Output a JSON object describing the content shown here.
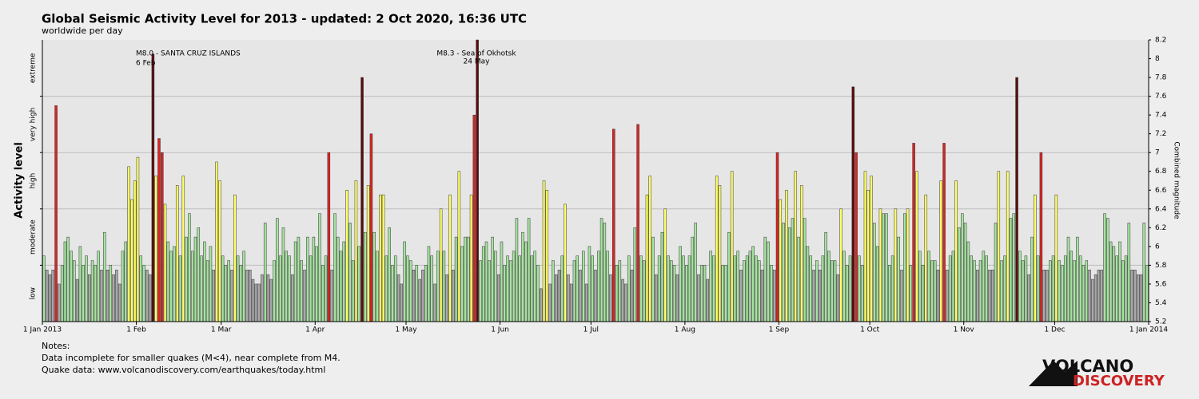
{
  "chart_data": {
    "type": "bar",
    "title": "Global Seismic Activity Level for 2013 - updated:  2 Oct 2020, 16:36 UTC",
    "subtitle": "worldwide per day",
    "y_left_label": "Activity level",
    "y_label": "Combined magnitude",
    "levels": [
      {
        "label": "low",
        "ylim": [
          5.2,
          5.8
        ],
        "color": "#a9a9a9"
      },
      {
        "label": "moderate",
        "ylim": [
          5.8,
          6.4
        ],
        "color": "#a6e3a0"
      },
      {
        "label": "high",
        "ylim": [
          6.4,
          7.0
        ],
        "color": "#ffff66"
      },
      {
        "label": "very high",
        "ylim": [
          7.0,
          7.6
        ],
        "color": "#dd2222"
      },
      {
        "label": "extreme",
        "ylim": [
          7.6,
          8.2
        ],
        "color": "#5a0c0c"
      }
    ],
    "ylim": [
      5.2,
      8.2
    ],
    "yticks": [
      5.2,
      5.4,
      5.6,
      5.8,
      6,
      6.2,
      6.4,
      6.6,
      6.8,
      7,
      7.2,
      7.4,
      7.6,
      7.8,
      8,
      8.2
    ],
    "xlim": [
      0,
      365
    ],
    "xticks": [
      {
        "value": 0,
        "label": "1 Jan 2013"
      },
      {
        "value": 31,
        "label": "1 Feb"
      },
      {
        "value": 59,
        "label": "1 Mar"
      },
      {
        "value": 90,
        "label": "1 Apr"
      },
      {
        "value": 120,
        "label": "1 May"
      },
      {
        "value": 151,
        "label": "1 Jun"
      },
      {
        "value": 181,
        "label": "1 Jul"
      },
      {
        "value": 212,
        "label": "1 Aug"
      },
      {
        "value": 243,
        "label": "1 Sep"
      },
      {
        "value": 273,
        "label": "1 Oct"
      },
      {
        "value": 304,
        "label": "1 Nov"
      },
      {
        "value": 334,
        "label": "1 Dec"
      },
      {
        "value": 365,
        "label": "1 Jan 2014"
      }
    ],
    "values": [
      5.9,
      5.75,
      5.7,
      5.75,
      7.5,
      5.6,
      5.8,
      6.05,
      6.1,
      5.95,
      5.85,
      5.65,
      6.0,
      5.8,
      5.9,
      5.7,
      5.85,
      5.8,
      5.95,
      5.75,
      6.15,
      5.75,
      5.8,
      5.7,
      5.75,
      5.6,
      5.95,
      6.05,
      6.85,
      6.5,
      6.7,
      6.95,
      5.9,
      5.8,
      5.75,
      5.7,
      8.05,
      6.75,
      7.15,
      7.0,
      6.45,
      6.05,
      5.95,
      6.0,
      6.65,
      5.9,
      6.75,
      6.1,
      6.35,
      5.95,
      6.1,
      6.2,
      5.9,
      6.05,
      5.85,
      6.0,
      5.75,
      6.9,
      6.7,
      5.9,
      5.8,
      5.85,
      5.75,
      6.55,
      5.9,
      5.8,
      5.95,
      5.75,
      5.75,
      5.65,
      5.6,
      5.6,
      5.7,
      6.25,
      5.7,
      5.65,
      5.85,
      6.3,
      5.9,
      6.2,
      5.95,
      5.9,
      5.7,
      6.05,
      6.1,
      5.85,
      5.75,
      6.1,
      5.9,
      6.1,
      6.0,
      6.35,
      5.8,
      5.9,
      7.0,
      5.75,
      6.35,
      6.1,
      5.95,
      6.05,
      6.6,
      6.25,
      5.85,
      6.7,
      6.0,
      7.8,
      6.15,
      6.65,
      7.2,
      6.15,
      5.95,
      6.55,
      6.55,
      5.9,
      6.2,
      5.8,
      5.9,
      5.7,
      5.6,
      6.05,
      5.9,
      5.85,
      5.75,
      5.8,
      5.65,
      5.75,
      5.8,
      6.0,
      5.9,
      5.6,
      5.95,
      6.4,
      5.95,
      5.7,
      6.55,
      5.75,
      6.1,
      6.8,
      6.0,
      6.1,
      6.1,
      6.55,
      7.4,
      8.2,
      5.85,
      6.0,
      6.05,
      5.85,
      6.1,
      5.95,
      5.7,
      6.05,
      5.8,
      5.9,
      5.85,
      5.95,
      6.3,
      5.9,
      6.15,
      6.05,
      6.3,
      5.9,
      5.95,
      5.8,
      5.55,
      6.7,
      6.6,
      5.6,
      5.85,
      5.7,
      5.75,
      5.9,
      6.45,
      5.7,
      5.6,
      5.85,
      5.9,
      5.75,
      5.95,
      5.6,
      6.0,
      5.9,
      5.75,
      5.95,
      6.3,
      6.25,
      5.95,
      5.7,
      7.25,
      5.8,
      5.85,
      5.65,
      5.6,
      5.9,
      5.75,
      6.2,
      7.3,
      5.9,
      5.85,
      6.55,
      6.75,
      6.1,
      5.7,
      5.9,
      6.15,
      6.4,
      5.9,
      5.85,
      5.8,
      5.7,
      6.0,
      5.9,
      5.8,
      5.9,
      6.1,
      6.25,
      5.7,
      5.8,
      5.8,
      5.65,
      5.95,
      5.9,
      6.75,
      6.65,
      5.8,
      5.8,
      6.15,
      6.8,
      5.9,
      5.95,
      5.75,
      5.85,
      5.9,
      5.95,
      6.0,
      5.9,
      5.85,
      5.75,
      6.1,
      6.05,
      5.8,
      5.75,
      7.0,
      6.5,
      6.25,
      6.6,
      6.2,
      6.3,
      6.8,
      6.1,
      6.65,
      6.3,
      6.0,
      5.9,
      5.75,
      5.85,
      5.75,
      5.9,
      6.15,
      5.95,
      5.85,
      5.85,
      5.7,
      6.4,
      5.95,
      5.8,
      5.9,
      7.7,
      7.0,
      5.9,
      5.8,
      6.8,
      6.6,
      6.75,
      6.25,
      6.0,
      6.4,
      6.35,
      6.35,
      5.8,
      5.9,
      6.4,
      6.1,
      5.75,
      6.35,
      6.4,
      5.8,
      7.1,
      6.8,
      5.95,
      5.8,
      6.55,
      5.95,
      5.85,
      5.85,
      5.75,
      6.7,
      7.1,
      5.75,
      5.9,
      5.95,
      6.7,
      6.2,
      6.35,
      6.25,
      6.05,
      5.9,
      5.85,
      5.75,
      5.85,
      5.95,
      5.9,
      5.75,
      5.75,
      6.25,
      6.8,
      5.85,
      5.9,
      6.8,
      6.3,
      6.35,
      7.8,
      5.95,
      5.85,
      5.9,
      5.7,
      6.1,
      6.55,
      5.9,
      7.0,
      5.75,
      5.75,
      5.85,
      5.9,
      6.55,
      5.85,
      5.8,
      5.9,
      6.1,
      5.95,
      5.85,
      6.1,
      5.9,
      5.8,
      5.85,
      5.75,
      5.65,
      5.7,
      5.75,
      5.75,
      6.35,
      6.3,
      6.05,
      6.0,
      5.9,
      6.05,
      5.85,
      5.9,
      6.25,
      5.75,
      5.75,
      5.7,
      5.7,
      6.25,
      5.8
    ],
    "annotations": [
      {
        "text": "M8.0 - SANTA CRUZ ISLANDS",
        "date": "6 Feb"
      },
      {
        "text": "M8.3 - Sea of Okhotsk",
        "date": "24 May"
      }
    ],
    "notes": [
      "Notes:",
      "Data incomplete for smaller quakes (M<4), near complete from M4.",
      "Quake data: www.volcanodiscovery.com/earthquakes/today.html"
    ],
    "logo": [
      "VOLCANO",
      "DISCOVERY"
    ]
  }
}
